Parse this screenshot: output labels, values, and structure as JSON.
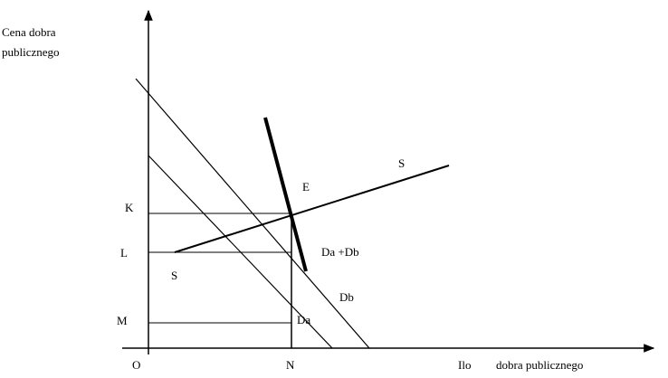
{
  "axis_labels": {
    "y_line1": "Cena dobra",
    "y_line2": "publicznego",
    "x_part1": "Ilo",
    "x_part2": "dobra publicznego",
    "origin": "O"
  },
  "point_labels": {
    "K": "K",
    "L": "L",
    "M": "M",
    "N": "N",
    "E": "E"
  },
  "curve_labels": {
    "supply_top": "S",
    "supply_bottom": "S",
    "demand_sum": "Da +Db",
    "demand_b": "Db",
    "demand_a": "Da"
  }
}
